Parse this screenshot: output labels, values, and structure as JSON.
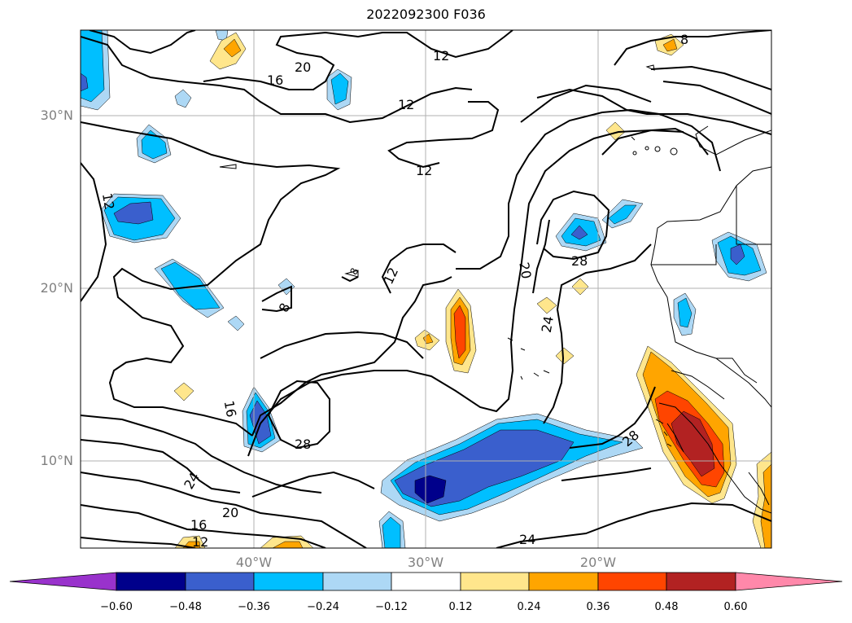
{
  "map": {
    "title": "2022092300 F036",
    "lat_labels": [
      "30°N",
      "20°N",
      "10°N"
    ],
    "lon_labels": [
      "40°W",
      "30°W",
      "20°W"
    ],
    "contour_labels": {
      "c20_top": "20",
      "c16_top": "16",
      "c12_top": "12",
      "c12_mid": "12",
      "c12_center": "12",
      "c12_left": "12",
      "c8_top": "8",
      "c12_c": "12",
      "c8_mid": "8",
      "c8_tiny": "8",
      "c20_mid": "20",
      "c28_right": "28",
      "c24_mid": "24",
      "c16_left": "16",
      "c28_low": "28",
      "c24_left": "24",
      "c20_low": "20",
      "c16_low": "16",
      "c12_low": "12",
      "c24_bottom": "24",
      "c28_coast": "28"
    }
  },
  "colorbar": {
    "ticks": [
      "−0.60",
      "−0.48",
      "−0.36",
      "−0.24",
      "−0.12",
      "0.12",
      "0.24",
      "0.36",
      "0.48",
      "0.60"
    ],
    "colors": [
      "#9932cc",
      "#00008b",
      "#3a5fcd",
      "#00bfff",
      "#add8f5",
      "#ffffff",
      "#ffe68c",
      "#ffa500",
      "#ff4500",
      "#b22222",
      "#ff88aa"
    ]
  }
}
